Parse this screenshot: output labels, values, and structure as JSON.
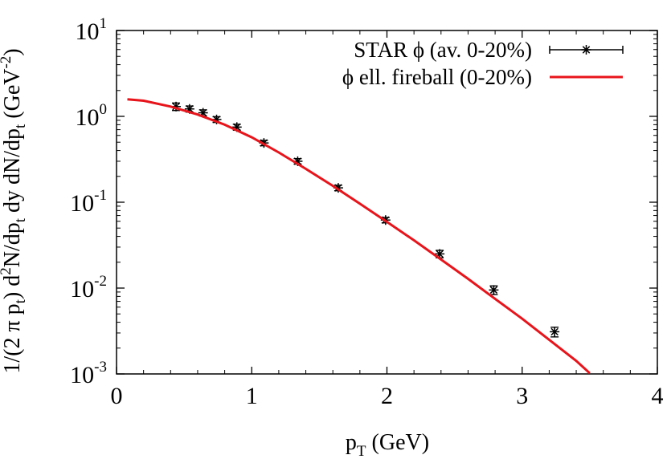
{
  "chart_data": {
    "type": "scatter",
    "xlabel": {
      "main": "p",
      "sub": "T",
      "rest": " (GeV)"
    },
    "ylabel": {
      "p1": "1/(2 π p",
      "s1": "t",
      "p2": ") d",
      "sup2": "2",
      "p3": "N/dp",
      "s3": "t",
      "p4": " dy dN/dp",
      "s4": "t",
      "p5": " (GeV",
      "sup5": "-2",
      "p6": ")"
    },
    "xlim": [
      0,
      4
    ],
    "ylim": [
      0.001,
      10
    ],
    "yscale": "log",
    "x_ticks": [
      {
        "value": 0,
        "label": "0"
      },
      {
        "value": 1,
        "label": "1"
      },
      {
        "value": 2,
        "label": "2"
      },
      {
        "value": 3,
        "label": "3"
      },
      {
        "value": 4,
        "label": "4"
      }
    ],
    "y_ticks": [
      {
        "value": 10,
        "base": "10",
        "exp": "1"
      },
      {
        "value": 1,
        "base": "10",
        "exp": "0"
      },
      {
        "value": 0.1,
        "base": "10",
        "exp": "-1"
      },
      {
        "value": 0.01,
        "base": "10",
        "exp": "-2"
      },
      {
        "value": 0.001,
        "base": "10",
        "exp": "-3"
      }
    ],
    "grid": false,
    "legend_position": "top-right",
    "series": [
      {
        "name": "STAR ϕ (av. 0-20%)",
        "kind": "points",
        "color": "#000000",
        "marker": "asterisk",
        "x": [
          0.44,
          0.54,
          0.64,
          0.74,
          0.89,
          1.09,
          1.34,
          1.64,
          1.99,
          2.39,
          2.79,
          3.24
        ],
        "y": [
          1.3,
          1.22,
          1.1,
          0.92,
          0.75,
          0.49,
          0.3,
          0.147,
          0.062,
          0.025,
          0.0095,
          0.0031
        ],
        "y_err": [
          0.13,
          0.1,
          0.09,
          0.07,
          0.06,
          0.035,
          0.022,
          0.011,
          0.0045,
          0.0025,
          0.0011,
          0.0004
        ]
      },
      {
        "name": "ϕ ell. fireball (0-20%)",
        "kind": "line",
        "color": "#e8141b",
        "x": [
          0.08,
          0.2,
          0.4,
          0.6,
          0.8,
          1.0,
          1.2,
          1.4,
          1.6,
          1.8,
          2.0,
          2.2,
          2.4,
          2.6,
          2.8,
          3.0,
          3.2,
          3.4,
          3.5
        ],
        "y": [
          1.58,
          1.52,
          1.3,
          1.05,
          0.8,
          0.57,
          0.38,
          0.245,
          0.155,
          0.096,
          0.059,
          0.036,
          0.0215,
          0.0128,
          0.0075,
          0.0044,
          0.0025,
          0.00142,
          0.00102
        ]
      }
    ]
  }
}
